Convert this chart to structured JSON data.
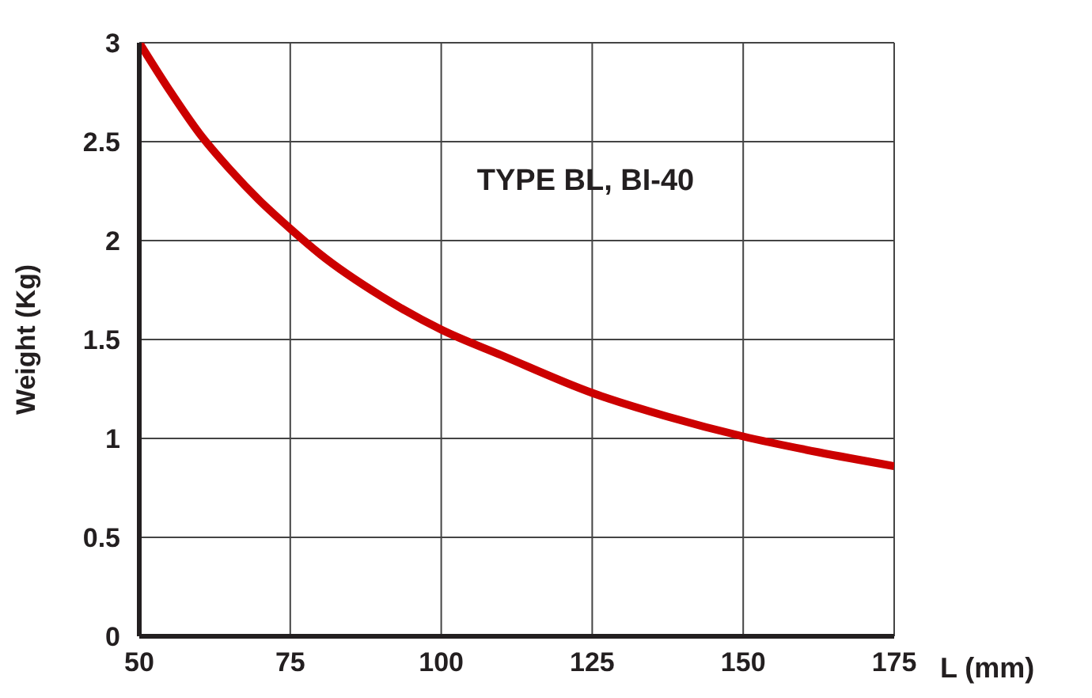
{
  "chart_data": {
    "type": "line",
    "title": "TYPE BL, BI-40",
    "xlabel": "L (mm)",
    "ylabel": "Weight (Kg)",
    "x": [
      50,
      55,
      60,
      65,
      70,
      75,
      80,
      90,
      100,
      110,
      125,
      137.5,
      150,
      162.5,
      175
    ],
    "series": [
      {
        "color": "#cc0000",
        "values": [
          3.0,
          2.76,
          2.54,
          2.36,
          2.2,
          2.06,
          1.93,
          1.72,
          1.55,
          1.42,
          1.23,
          1.11,
          1.01,
          0.93,
          0.86
        ]
      }
    ],
    "xlim": [
      50,
      175
    ],
    "xticks": [
      50,
      75,
      100,
      125,
      150,
      175
    ],
    "ylim": [
      0,
      3
    ],
    "yticks": [
      0,
      0.5,
      1,
      1.5,
      2,
      2.5,
      3
    ],
    "grid": true,
    "marker": "none",
    "line_style": "solid"
  }
}
